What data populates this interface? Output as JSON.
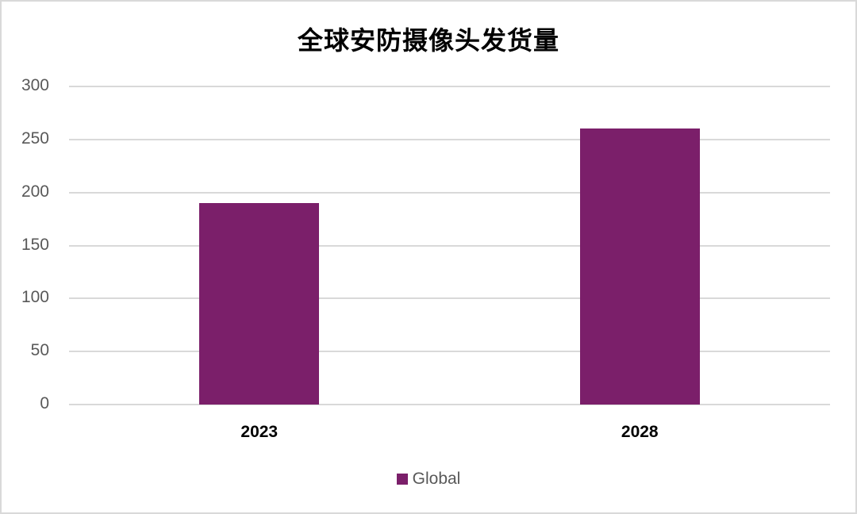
{
  "chart_data": {
    "type": "bar",
    "title": "全球安防摄像头发货量",
    "categories": [
      "2023",
      "2028"
    ],
    "series": [
      {
        "name": "Global",
        "values": [
          190,
          260
        ],
        "color": "#7b1f6a"
      }
    ],
    "xlabel": "",
    "ylabel": "",
    "ylim": [
      0,
      300
    ],
    "yticks": [
      "0",
      "50",
      "100",
      "150",
      "200",
      "250",
      "300"
    ],
    "grid": true,
    "legend_position": "bottom"
  }
}
